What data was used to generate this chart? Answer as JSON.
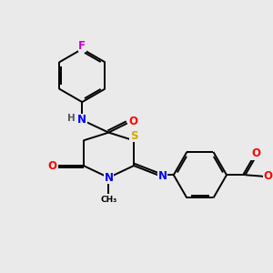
{
  "background_color": "#eaeaea",
  "fig_size": [
    3.0,
    3.0
  ],
  "dpi": 100,
  "atom_colors": {
    "C": "#000000",
    "N": "#0000ff",
    "O": "#ff0000",
    "S": "#ccaa00",
    "F": "#cc00cc",
    "H": "#555555"
  },
  "bond_color": "#000000",
  "bond_width": 1.4,
  "font_size_atom": 8.5,
  "font_size_methyl": 7.0
}
